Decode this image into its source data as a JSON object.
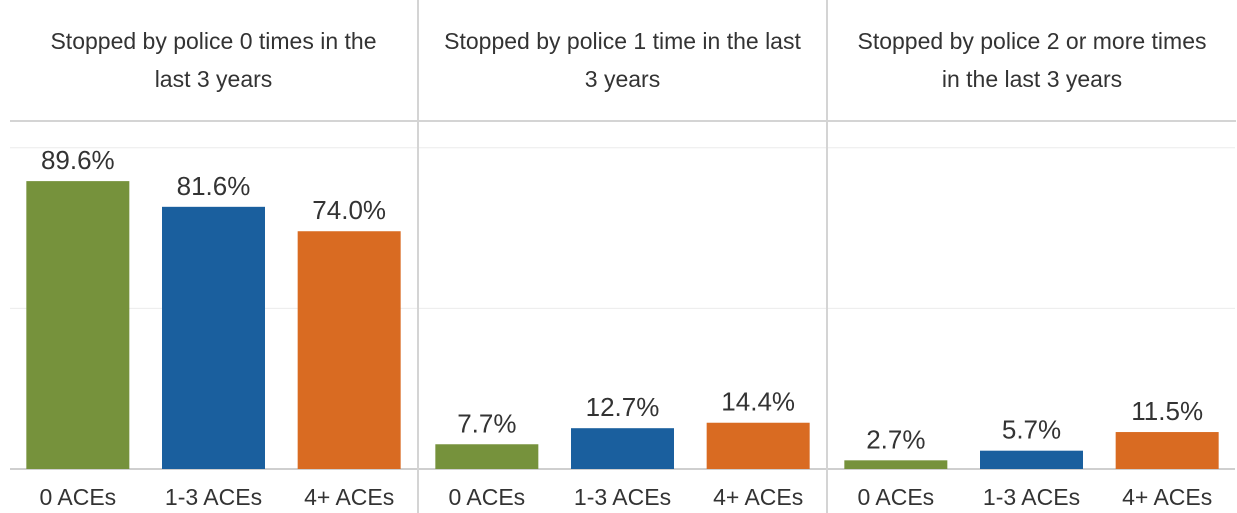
{
  "chart_data": [
    {
      "type": "bar",
      "title": "Stopped by police 0 times in the last 3 years",
      "categories": [
        "0 ACEs",
        "1-3 ACEs",
        "4+ ACEs"
      ],
      "values": [
        89.6,
        81.6,
        74.0
      ],
      "value_labels": [
        "89.6%",
        "81.6%",
        "74.0%"
      ],
      "colors": [
        "#76923c",
        "#1a5f9e",
        "#d96b22"
      ],
      "ylim": [
        0,
        108
      ],
      "yticks": [
        0,
        50,
        100
      ],
      "grid": true
    },
    {
      "type": "bar",
      "title": "Stopped by police 1 time in the last 3 years",
      "categories": [
        "0 ACEs",
        "1-3 ACEs",
        "4+ ACEs"
      ],
      "values": [
        7.7,
        12.7,
        14.4
      ],
      "value_labels": [
        "7.7%",
        "12.7%",
        "14.4%"
      ],
      "colors": [
        "#76923c",
        "#1a5f9e",
        "#d96b22"
      ],
      "ylim": [
        0,
        108
      ],
      "yticks": [
        0,
        50,
        100
      ],
      "grid": true
    },
    {
      "type": "bar",
      "title": "Stopped by police 2 or more times in the last 3 years",
      "categories": [
        "0 ACEs",
        "1-3 ACEs",
        "4+ ACEs"
      ],
      "values": [
        2.7,
        5.7,
        11.5
      ],
      "value_labels": [
        "2.7%",
        "5.7%",
        "11.5%"
      ],
      "colors": [
        "#76923c",
        "#1a5f9e",
        "#d96b22"
      ],
      "ylim": [
        0,
        108
      ],
      "yticks": [
        0,
        50,
        100
      ],
      "grid": true
    }
  ]
}
